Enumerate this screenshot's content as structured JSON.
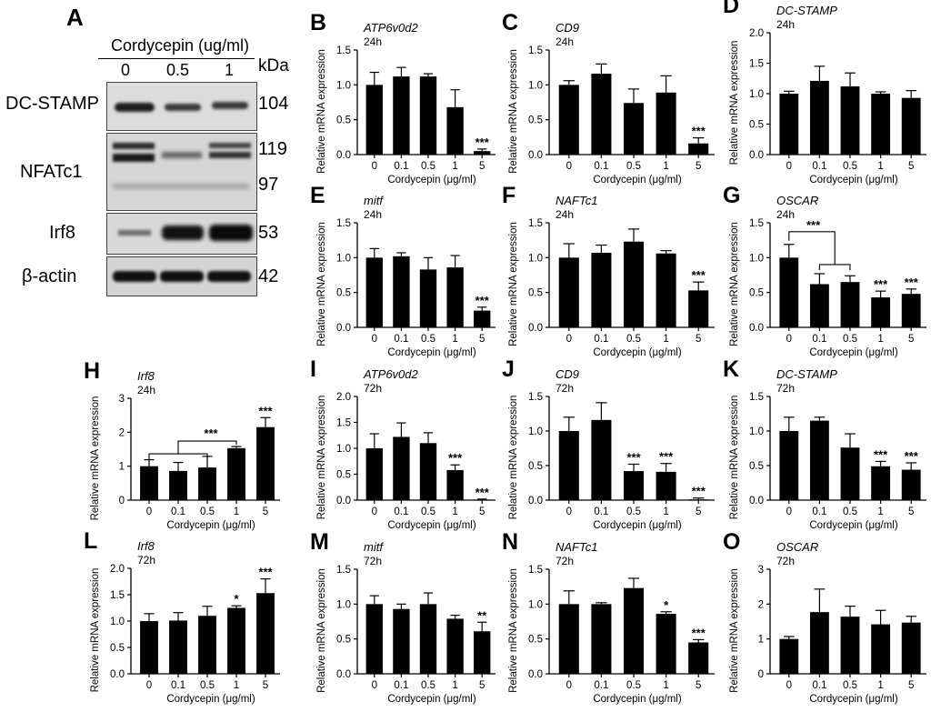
{
  "figure": {
    "blot": {
      "panel_letter": "A",
      "treatment_label": "Cordycepin (ug/ml)",
      "doses": [
        "0",
        "0.5",
        "1"
      ],
      "kda_label": "kDa",
      "rows": [
        {
          "protein": "DC-STAMP",
          "kda": [
            "104"
          ]
        },
        {
          "protein": "NFATc1",
          "kda": [
            "119",
            "97"
          ]
        },
        {
          "protein": "Irf8",
          "kda": [
            "53"
          ]
        },
        {
          "protein": "β-actin",
          "kda": [
            "42"
          ]
        }
      ]
    }
  },
  "chart_data": [
    {
      "panel": "B",
      "type": "bar",
      "gene": "ATP6v0d2",
      "time": "24h",
      "ylabel": "Relative mRNA expression",
      "xlabel": "Cordycepin (μg/ml)",
      "categories": [
        "0",
        "0.1",
        "0.5",
        "1",
        "5"
      ],
      "values": [
        1.0,
        1.12,
        1.12,
        0.68,
        0.05
      ],
      "errors": [
        0.18,
        0.13,
        0.04,
        0.25,
        0.03
      ],
      "sig": [
        "",
        "",
        "",
        "",
        "***"
      ],
      "ylim": [
        0,
        1.5
      ],
      "yticks": [
        "0.0",
        "0.5",
        "1.0",
        "1.5"
      ],
      "bracket": null
    },
    {
      "panel": "C",
      "type": "bar",
      "gene": "CD9",
      "time": "24h",
      "ylabel": "Relative mRNA expression",
      "xlabel": "Cordycepin (μg/ml)",
      "categories": [
        "0",
        "0.1",
        "0.5",
        "1",
        "5"
      ],
      "values": [
        1.0,
        1.16,
        0.74,
        0.89,
        0.16
      ],
      "errors": [
        0.06,
        0.14,
        0.2,
        0.24,
        0.08
      ],
      "sig": [
        "",
        "",
        "",
        "",
        "***"
      ],
      "ylim": [
        0,
        1.5
      ],
      "yticks": [
        "0.0",
        "0.5",
        "1.0",
        "1.5"
      ],
      "bracket": null
    },
    {
      "panel": "D",
      "type": "bar",
      "gene": "DC-STAMP",
      "time": "24h",
      "ylabel": "Relative mRNA expression",
      "xlabel": "Cordycepin (μg/ml)",
      "categories": [
        "0",
        "0.1",
        "0.5",
        "1",
        "5"
      ],
      "values": [
        1.0,
        1.21,
        1.12,
        1.0,
        0.93
      ],
      "errors": [
        0.04,
        0.24,
        0.22,
        0.03,
        0.12
      ],
      "sig": [
        "",
        "",
        "",
        "",
        ""
      ],
      "ylim": [
        0,
        2.0
      ],
      "yticks": [
        "0.0",
        "0.5",
        "1.0",
        "1.5",
        "2.0"
      ],
      "bracket": null
    },
    {
      "panel": "E",
      "type": "bar",
      "gene": "mitf",
      "time": "24h",
      "ylabel": "Relative mRNA expression",
      "xlabel": "Cordycepin (μg/ml)",
      "categories": [
        "0",
        "0.1",
        "0.5",
        "1",
        "5"
      ],
      "values": [
        1.0,
        1.02,
        0.83,
        0.86,
        0.24
      ],
      "errors": [
        0.13,
        0.05,
        0.17,
        0.17,
        0.05
      ],
      "sig": [
        "",
        "",
        "",
        "",
        "***"
      ],
      "ylim": [
        0,
        1.5
      ],
      "yticks": [
        "0.0",
        "0.5",
        "1.0",
        "1.5"
      ],
      "bracket": null
    },
    {
      "panel": "F",
      "type": "bar",
      "gene": "NAFTc1",
      "time": "24h",
      "ylabel": "Relative mRNA expression",
      "xlabel": "Cordycepin (μg/ml)",
      "categories": [
        "0",
        "0.1",
        "0.5",
        "1",
        "5"
      ],
      "values": [
        1.0,
        1.07,
        1.23,
        1.06,
        0.53
      ],
      "errors": [
        0.2,
        0.11,
        0.18,
        0.04,
        0.12
      ],
      "sig": [
        "",
        "",
        "",
        "",
        "***"
      ],
      "ylim": [
        0,
        1.5
      ],
      "yticks": [
        "0.0",
        "0.5",
        "1.0",
        "1.5"
      ],
      "bracket": null
    },
    {
      "panel": "G",
      "type": "bar",
      "gene": "OSCAR",
      "time": "24h",
      "ylabel": "Relative mRNA expression",
      "xlabel": "Cordycepin (μg/ml)",
      "categories": [
        "0",
        "0.1",
        "0.5",
        "1",
        "5"
      ],
      "values": [
        1.0,
        0.62,
        0.65,
        0.43,
        0.48
      ],
      "errors": [
        0.19,
        0.15,
        0.09,
        0.09,
        0.07
      ],
      "sig": [
        "",
        "",
        "",
        "***",
        "***"
      ],
      "ylim": [
        0,
        1.5
      ],
      "yticks": [
        "0.0",
        "0.5",
        "1.0",
        "1.5"
      ],
      "bracket": {
        "from": 0,
        "to_start": 1,
        "to_end": 2,
        "label": "***"
      }
    },
    {
      "panel": "H",
      "type": "bar",
      "gene": "Irf8",
      "time": "24h",
      "ylabel": "Relative mRNA expression",
      "xlabel": "Cordycepin (μg/ml)",
      "categories": [
        "0",
        "0.1",
        "0.5",
        "1",
        "5"
      ],
      "values": [
        1.0,
        0.86,
        0.96,
        1.53,
        2.15
      ],
      "errors": [
        0.19,
        0.25,
        0.33,
        0.05,
        0.28
      ],
      "sig": [
        "",
        "",
        "",
        "",
        "***"
      ],
      "ylim": [
        0,
        3
      ],
      "yticks": [
        "0",
        "1",
        "2",
        "3"
      ],
      "bracket": {
        "from": 3,
        "to_start": 0,
        "to_end": 2,
        "label": "***"
      }
    },
    {
      "panel": "I",
      "type": "bar",
      "gene": "ATP6v0d2",
      "time": "72h",
      "ylabel": "Relative mRNA expression",
      "xlabel": "Cordycepin (μg/ml)",
      "categories": [
        "0",
        "0.1",
        "0.5",
        "1",
        "5"
      ],
      "values": [
        1.0,
        1.22,
        1.1,
        0.58,
        0.01
      ],
      "errors": [
        0.28,
        0.27,
        0.2,
        0.1,
        0.01
      ],
      "sig": [
        "",
        "",
        "",
        "***",
        "***"
      ],
      "ylim": [
        0,
        2.0
      ],
      "yticks": [
        "0.0",
        "0.5",
        "1.0",
        "1.5",
        "2.0"
      ],
      "bracket": null
    },
    {
      "panel": "J",
      "type": "bar",
      "gene": "CD9",
      "time": "72h",
      "ylabel": "Relative mRNA expression",
      "xlabel": "Cordycepin (μg/ml)",
      "categories": [
        "0",
        "0.1",
        "0.5",
        "1",
        "5"
      ],
      "values": [
        1.0,
        1.16,
        0.42,
        0.41,
        0.01
      ],
      "errors": [
        0.2,
        0.25,
        0.1,
        0.12,
        0.02
      ],
      "sig": [
        "",
        "",
        "***",
        "***",
        "***"
      ],
      "ylim": [
        0,
        1.5
      ],
      "yticks": [
        "0.0",
        "0.5",
        "1.0",
        "1.5"
      ],
      "bracket": null
    },
    {
      "panel": "K",
      "type": "bar",
      "gene": "DC-STAMP",
      "time": "72h",
      "ylabel": "Relative mRNA expression",
      "xlabel": "Cordycepin (μg/ml)",
      "categories": [
        "0",
        "0.1",
        "0.5",
        "1",
        "5"
      ],
      "values": [
        1.0,
        1.15,
        0.76,
        0.49,
        0.44
      ],
      "errors": [
        0.2,
        0.05,
        0.2,
        0.07,
        0.1
      ],
      "sig": [
        "",
        "",
        "",
        "***",
        "***"
      ],
      "ylim": [
        0,
        1.5
      ],
      "yticks": [
        "0.0",
        "0.5",
        "1.0",
        "1.5"
      ],
      "bracket": null
    },
    {
      "panel": "L",
      "type": "bar",
      "gene": "Irf8",
      "time": "72h",
      "ylabel": "Relative mRNA expression",
      "xlabel": "Cordycepin (μg/ml)",
      "categories": [
        "0",
        "0.1",
        "0.5",
        "1",
        "5"
      ],
      "values": [
        1.0,
        1.01,
        1.1,
        1.25,
        1.53
      ],
      "errors": [
        0.14,
        0.15,
        0.18,
        0.04,
        0.27
      ],
      "sig": [
        "",
        "",
        "",
        "*",
        "***"
      ],
      "ylim": [
        0,
        2.0
      ],
      "yticks": [
        "0.0",
        "0.5",
        "1.0",
        "1.5",
        "2.0"
      ],
      "bracket": null
    },
    {
      "panel": "M",
      "type": "bar",
      "gene": "mitf",
      "time": "72h",
      "ylabel": "Relative mRNA expression",
      "xlabel": "Cordycepin (μg/ml)",
      "categories": [
        "0",
        "0.1",
        "0.5",
        "1",
        "5"
      ],
      "values": [
        1.0,
        0.93,
        1.0,
        0.79,
        0.61
      ],
      "errors": [
        0.12,
        0.07,
        0.16,
        0.05,
        0.13
      ],
      "sig": [
        "",
        "",
        "",
        "",
        "**"
      ],
      "ylim": [
        0,
        1.5
      ],
      "yticks": [
        "0.0",
        "0.5",
        "1.0",
        "1.5"
      ],
      "bracket": null
    },
    {
      "panel": "N",
      "type": "bar",
      "gene": "NAFTc1",
      "time": "72h",
      "ylabel": "Relative mRNA expression",
      "xlabel": "Cordycepin (μg/ml)",
      "categories": [
        "0",
        "0.1",
        "0.5",
        "1",
        "5"
      ],
      "values": [
        1.0,
        1.0,
        1.23,
        0.86,
        0.45
      ],
      "errors": [
        0.19,
        0.02,
        0.14,
        0.03,
        0.04
      ],
      "sig": [
        "",
        "",
        "",
        "*",
        "***"
      ],
      "ylim": [
        0,
        1.5
      ],
      "yticks": [
        "0.0",
        "0.5",
        "1.0",
        "1.5"
      ],
      "bracket": null
    },
    {
      "panel": "O",
      "type": "bar",
      "gene": "OSCAR",
      "time": "72h",
      "ylabel": "Relative mRNA expression",
      "xlabel": "Cordycepin (μg/ml)",
      "categories": [
        "0",
        "0.1",
        "0.5",
        "1",
        "5"
      ],
      "values": [
        1.0,
        1.77,
        1.64,
        1.42,
        1.47
      ],
      "errors": [
        0.07,
        0.66,
        0.3,
        0.4,
        0.18
      ],
      "sig": [
        "",
        "",
        "",
        "",
        ""
      ],
      "ylim": [
        0,
        3
      ],
      "yticks": [
        "0",
        "1",
        "2",
        "3"
      ],
      "bracket": null
    }
  ]
}
